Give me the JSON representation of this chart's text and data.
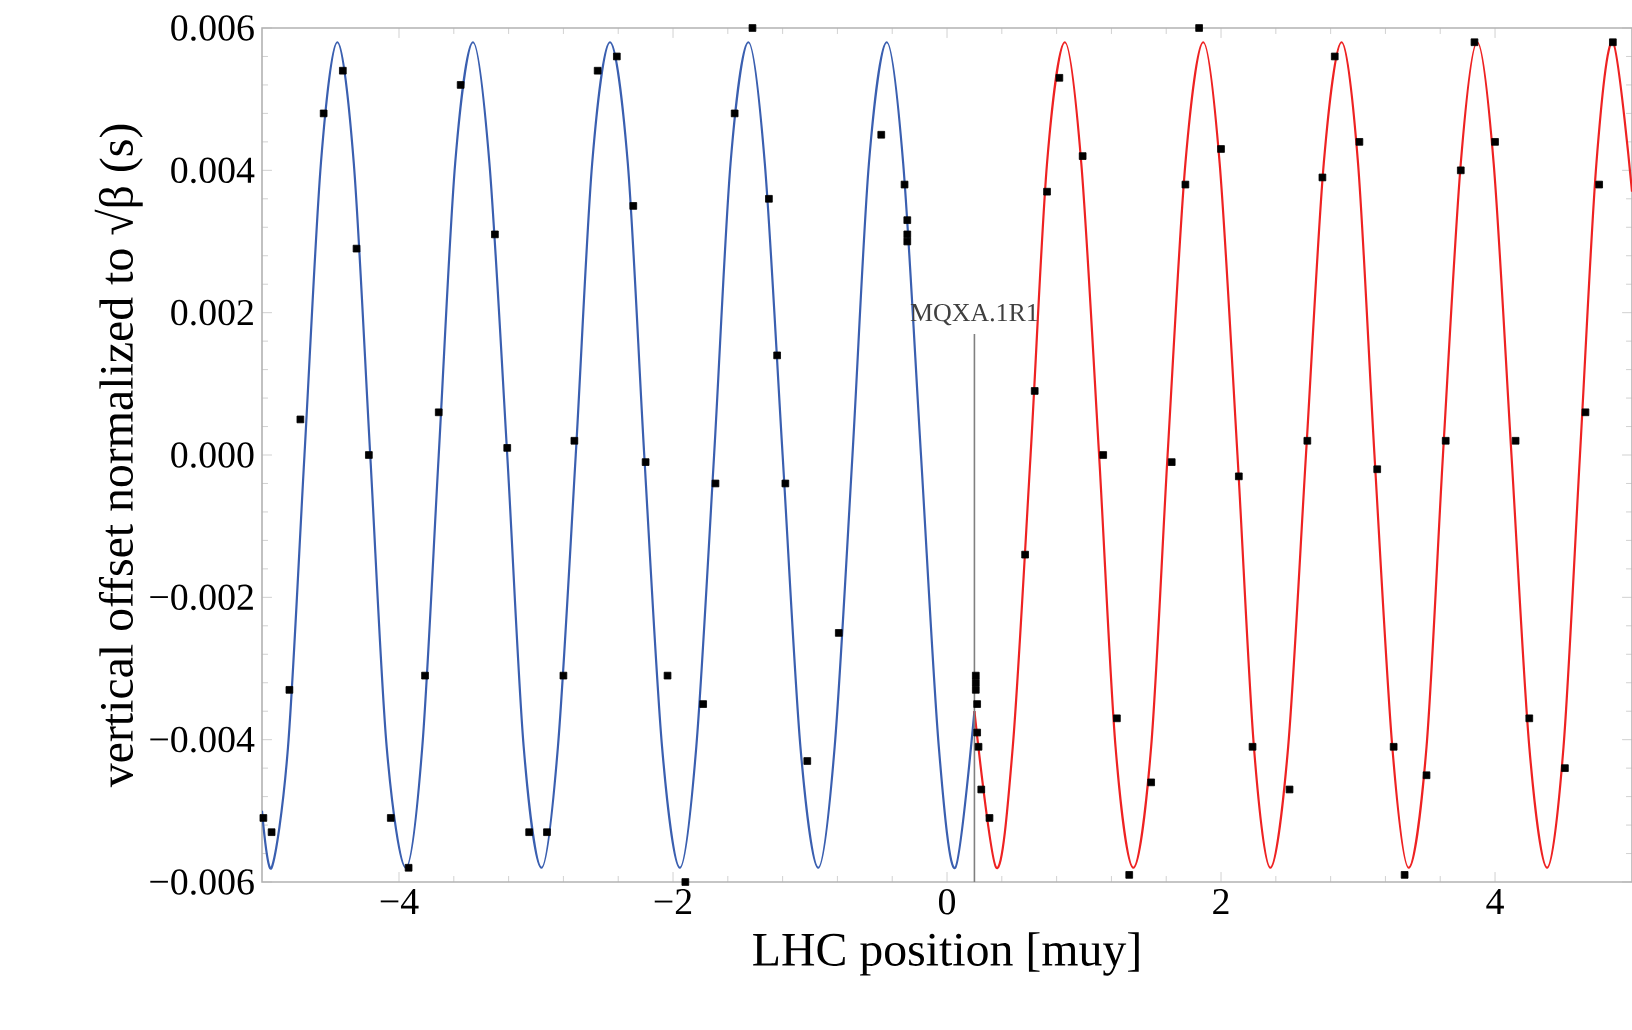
{
  "chart_data": {
    "type": "line",
    "xlabel": "LHC position [muy]",
    "ylabel": "vertical offset normalized to √β (s)",
    "xlim": [
      -5,
      5
    ],
    "ylim": [
      -0.006,
      0.006
    ],
    "xticks": [
      {
        "value": -4,
        "label": "−4"
      },
      {
        "value": -2,
        "label": "−2"
      },
      {
        "value": 0,
        "label": "0"
      },
      {
        "value": 2,
        "label": "2"
      },
      {
        "value": 4,
        "label": "4"
      }
    ],
    "yticks": [
      {
        "value": -0.006,
        "label": "−0.006"
      },
      {
        "value": -0.004,
        "label": "−0.004"
      },
      {
        "value": -0.002,
        "label": "−0.002"
      },
      {
        "value": 0,
        "label": "0.000"
      },
      {
        "value": 0.002,
        "label": "0.002"
      },
      {
        "value": 0.004,
        "label": "0.004"
      },
      {
        "value": 0.006,
        "label": "0.006"
      }
    ],
    "grid": false,
    "line_style": "solid",
    "ref_lines": [
      {
        "axis": "x",
        "value": 0.2,
        "label": "MQXA.1R1",
        "color": "#808080"
      }
    ],
    "series": [
      {
        "color": "#3a5fb0",
        "x": [
          -5,
          -4.93,
          -4.81,
          -4.69,
          -4.57,
          -4.45,
          -4.33,
          -4.21,
          -4.09,
          -3.95,
          -3.83,
          -3.71,
          -3.59,
          -3.46,
          -3.34,
          -3.21,
          -3.09,
          -2.96,
          -2.84,
          -2.71,
          -2.59,
          -2.46,
          -2.33,
          -2.21,
          -2.08,
          -1.95,
          -1.83,
          -1.7,
          -1.58,
          -1.45,
          -1.33,
          -1.2,
          -1.07,
          -0.94,
          -0.82,
          -0.69,
          -0.57,
          -0.44,
          -0.32,
          -0.19,
          -0.06,
          0.06,
          0.2
        ],
        "values": [
          -0.005,
          -0.0058,
          -0.0041,
          0,
          0.0041,
          0.0058,
          0.0041,
          0,
          -0.0041,
          -0.0058,
          -0.0041,
          0,
          0.0041,
          0.0058,
          0.0041,
          0,
          -0.0041,
          -0.0058,
          -0.0041,
          0,
          0.0041,
          0.0058,
          0.0041,
          0,
          -0.0041,
          -0.0058,
          -0.0041,
          0,
          0.0041,
          0.0058,
          0.0041,
          0,
          -0.0041,
          -0.0058,
          -0.0041,
          0,
          0.0041,
          0.0058,
          0.0041,
          0,
          -0.0041,
          -0.0058,
          -0.0036
        ]
      },
      {
        "color": "#ee2222",
        "x": [
          0.2,
          0.36,
          0.48,
          0.61,
          0.73,
          0.86,
          0.98,
          1.11,
          1.23,
          1.36,
          1.49,
          1.61,
          1.74,
          1.87,
          1.99,
          2.12,
          2.24,
          2.36,
          2.49,
          2.62,
          2.75,
          2.88,
          3.0,
          3.12,
          3.25,
          3.37,
          3.5,
          3.62,
          3.75,
          3.87,
          3.99,
          4.12,
          4.25,
          4.38,
          4.5,
          4.62,
          4.74,
          4.86,
          5
        ],
        "values": [
          -0.0036,
          -0.0058,
          -0.0041,
          0,
          0.0041,
          0.0058,
          0.0041,
          0,
          -0.0041,
          -0.0058,
          -0.0041,
          0,
          0.0041,
          0.0058,
          0.0041,
          0,
          -0.0041,
          -0.0058,
          -0.0041,
          0,
          0.0041,
          0.0058,
          0.0041,
          0,
          -0.0041,
          -0.0058,
          -0.0041,
          0,
          0.0041,
          0.0058,
          0.0041,
          0,
          -0.0041,
          -0.0058,
          -0.0041,
          0,
          0.0041,
          0.0058,
          0.0037
        ]
      },
      {
        "type": "scatter",
        "color": "#000000",
        "marker": "square",
        "x": [
          -4.99,
          -4.93,
          -4.8,
          -4.72,
          -4.55,
          -4.41,
          -4.31,
          -4.22,
          -4.06,
          -3.93,
          -3.81,
          -3.71,
          -3.55,
          -3.3,
          -3.21,
          -3.05,
          -2.92,
          -2.8,
          -2.72,
          -2.55,
          -2.41,
          -2.29,
          -2.2,
          -2.04,
          -1.91,
          -1.78,
          -1.69,
          -1.55,
          -1.42,
          -1.3,
          -1.24,
          -1.18,
          -1.02,
          -0.79,
          -0.48,
          -0.31,
          -0.29,
          -0.29,
          -0.29,
          0.21,
          0.21,
          0.21,
          0.22,
          0.22,
          0.23,
          0.25,
          0.31,
          0.57,
          0.64,
          0.73,
          0.82,
          0.99,
          1.14,
          1.24,
          1.33,
          1.49,
          1.64,
          1.74,
          1.84,
          2.0,
          2.13,
          2.23,
          2.5,
          2.63,
          2.74,
          2.83,
          3.01,
          3.14,
          3.26,
          3.34,
          3.5,
          3.64,
          3.75,
          3.85,
          4.0,
          4.15,
          4.25,
          4.51,
          4.66,
          4.76,
          4.86
        ],
        "values": [
          -0.0051,
          -0.0053,
          -0.0033,
          0.0005,
          0.0048,
          0.0054,
          0.0029,
          0.0,
          -0.0051,
          -0.0058,
          -0.0031,
          0.0006,
          0.0052,
          0.0031,
          0.0001,
          -0.0053,
          -0.0053,
          -0.0031,
          0.0002,
          0.0054,
          0.0056,
          0.0035,
          -0.0001,
          -0.0031,
          -0.006,
          -0.0035,
          -0.0004,
          0.0048,
          0.006,
          0.0036,
          0.0014,
          -0.0004,
          -0.0043,
          -0.0025,
          0.0045,
          0.0038,
          0.0033,
          0.0031,
          0.003,
          -0.0031,
          -0.0032,
          -0.0033,
          -0.0035,
          -0.0039,
          -0.0041,
          -0.0047,
          -0.0051,
          -0.0014,
          0.0009,
          0.0037,
          0.0053,
          0.0042,
          0.0,
          -0.0037,
          -0.0059,
          -0.0046,
          -0.0001,
          0.0038,
          0.006,
          0.0043,
          -0.0003,
          -0.0041,
          -0.0047,
          0.0002,
          0.0039,
          0.0056,
          0.0044,
          -0.0002,
          -0.0041,
          -0.0059,
          -0.0045,
          0.0002,
          0.004,
          0.0058,
          0.0044,
          0.0002,
          -0.0037,
          -0.0044,
          0.0006,
          0.0038,
          0.0058
        ]
      }
    ]
  }
}
